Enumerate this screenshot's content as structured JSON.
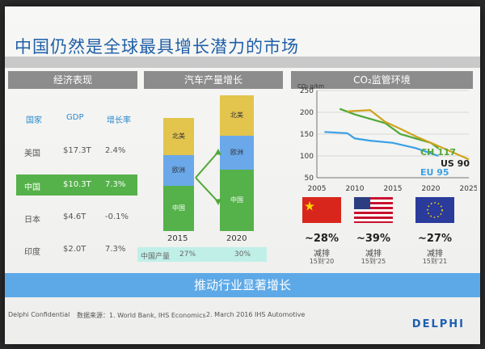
{
  "title": "中国仍然是全球最具增长潜力的市场",
  "panels": {
    "economy": "经济表现",
    "auto": "汽车产量增长",
    "co2": "CO₂监管环境"
  },
  "economy_table": {
    "headers": [
      "国家",
      "GDP",
      "增长率"
    ],
    "rows": [
      {
        "country": "美国",
        "gdp": "$17.3T",
        "growth": "2.4%"
      },
      {
        "country": "中国",
        "gdp": "$10.3T",
        "growth": "7.3%"
      },
      {
        "country": "日本",
        "gdp": "$4.6T",
        "growth": "-0.1%"
      },
      {
        "country": "印度",
        "gdp": "$2.0T",
        "growth": "7.3%"
      }
    ]
  },
  "auto_chart": {
    "years": [
      "2015",
      "2020"
    ],
    "segments": [
      "中国",
      "欧洲",
      "北美"
    ],
    "production_note": "中国产量",
    "production_values": [
      "27%",
      "30%"
    ]
  },
  "chart_data": {
    "type": "line",
    "ylabel": "CO₂ g/km",
    "x_ticks": [
      2005,
      2010,
      2015,
      2020,
      2025
    ],
    "y_ticks": [
      50,
      100,
      150,
      200,
      250
    ],
    "xlim": [
      2005,
      2025
    ],
    "ylim": [
      50,
      250
    ],
    "series": [
      {
        "name": "CH 117",
        "color": "#4ea836",
        "points": [
          [
            2008,
            208
          ],
          [
            2010,
            195
          ],
          [
            2012,
            185
          ],
          [
            2014,
            175
          ],
          [
            2016,
            150
          ],
          [
            2018,
            140
          ],
          [
            2020,
            130
          ],
          [
            2021,
            117
          ]
        ]
      },
      {
        "name": "US 90",
        "color": "#cfa31e",
        "points": [
          [
            2009,
            202
          ],
          [
            2012,
            205
          ],
          [
            2014,
            178
          ],
          [
            2016,
            162
          ],
          [
            2018,
            145
          ],
          [
            2020,
            130
          ],
          [
            2022,
            115
          ],
          [
            2025,
            92
          ]
        ]
      },
      {
        "name": "EU 95",
        "color": "#3aa0e6",
        "points": [
          [
            2006,
            155
          ],
          [
            2009,
            152
          ],
          [
            2010,
            140
          ],
          [
            2012,
            135
          ],
          [
            2015,
            130
          ],
          [
            2018,
            118
          ],
          [
            2021,
            100
          ]
        ]
      }
    ]
  },
  "co2_reductions": [
    {
      "country": "china",
      "pct": "~28%",
      "label": "减排",
      "period": "15到'20"
    },
    {
      "country": "usa",
      "pct": "~39%",
      "label": "减排",
      "period": "15到'25"
    },
    {
      "country": "eu",
      "pct": "~27%",
      "label": "减排",
      "period": "15到'21"
    }
  ],
  "bottom_banner": "推动行业显著增长",
  "footer": {
    "sources": "数据来源：1. World Bank, IHS Economics",
    "source2": "2. March 2016 IHS Automotive",
    "left_small": "Delphi Confidential",
    "logo": "DELPHI"
  },
  "colors": {
    "green": "#55b14a",
    "blue_bar": "#6aa8ea",
    "yellow_bar": "#e3c44c",
    "title": "#1f5fa8"
  }
}
